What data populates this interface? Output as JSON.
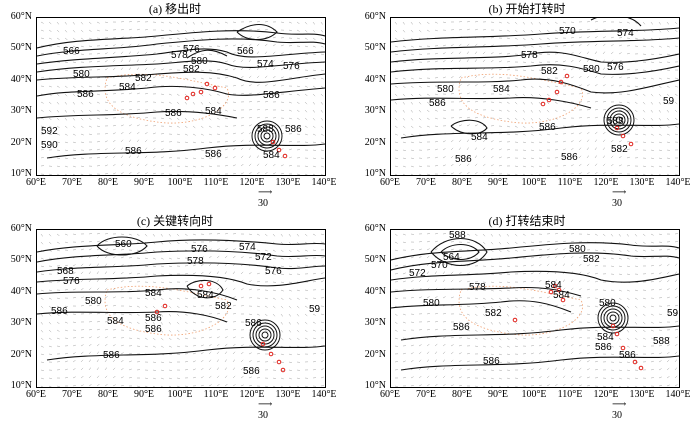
{
  "panels": [
    {
      "title": "(a) 移出时",
      "contour_labels": [
        "566",
        "578",
        "576",
        "566",
        "580",
        "574",
        "576",
        "580",
        "582",
        "582",
        "584",
        "586",
        "584",
        "586",
        "586",
        "592",
        "590",
        "586",
        "586",
        "588",
        "586",
        "584"
      ]
    },
    {
      "title": "(b) 开始打转时",
      "contour_labels": [
        "570",
        "574",
        "578",
        "580",
        "576",
        "582",
        "580",
        "584",
        "586",
        "584",
        "586",
        "586",
        "588",
        "586",
        "582",
        "59"
      ]
    },
    {
      "title": "(c) 关键转向时",
      "contour_labels": [
        "560",
        "576",
        "574",
        "572",
        "568",
        "576",
        "578",
        "576",
        "580",
        "584",
        "584",
        "582",
        "586",
        "584",
        "586",
        "586",
        "586",
        "586",
        "586",
        "59"
      ]
    },
    {
      "title": "(d) 打转结束时",
      "contour_labels": [
        "588",
        "564",
        "580",
        "570",
        "572",
        "582",
        "578",
        "580",
        "584",
        "582",
        "584",
        "586",
        "580",
        "584",
        "586",
        "586",
        "588",
        "59",
        "586"
      ]
    }
  ],
  "y_ticks": [
    "60°N",
    "50°N",
    "40°N",
    "30°N",
    "20°N",
    "10°N"
  ],
  "x_ticks": [
    "60°E",
    "70°E",
    "80°E",
    "90°E",
    "100°E",
    "110°E",
    "120°E",
    "130°E",
    "140°E"
  ],
  "ref_vector": "30",
  "colors": {
    "contour": "#111111",
    "wind": "#555555",
    "track": "#e0201a",
    "terrain": "#f0a070"
  }
}
